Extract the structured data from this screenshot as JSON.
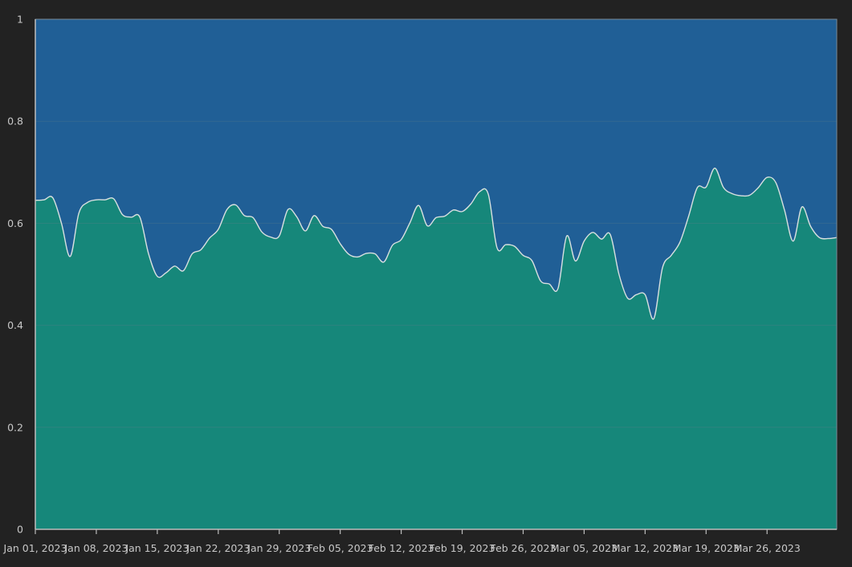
{
  "chart_data": {
    "type": "area",
    "title": "",
    "xlabel": "",
    "ylabel": "",
    "stacked_normalized": true,
    "ylim": [
      0,
      1
    ],
    "yticks": [
      "0",
      "0.2",
      "0.4",
      "0.6",
      "0.8",
      "1"
    ],
    "xlim": [
      "2023-01-01",
      "2023-04-03"
    ],
    "xticks": [
      "Jan 01, 2023",
      "Jan 08, 2023",
      "Jan 15, 2023",
      "Jan 22, 2023",
      "Jan 29, 2023",
      "Feb 05, 2023",
      "Feb 12, 2023",
      "Feb 19, 2023",
      "Feb 26, 2023",
      "Mar 05, 2023",
      "Mar 12, 2023",
      "Mar 19, 2023",
      "Mar 26, 2023"
    ],
    "grid": true,
    "colors": {
      "background": "#222222",
      "lower_series": "#16877a",
      "upper_series": "#205f96",
      "boundary_line": "#d8e0e0",
      "axis": "#bdbdbd",
      "grid": "#5a7a8a"
    },
    "x": [
      "2023-01-01",
      "2023-01-02",
      "2023-01-03",
      "2023-01-04",
      "2023-01-05",
      "2023-01-06",
      "2023-01-07",
      "2023-01-08",
      "2023-01-09",
      "2023-01-10",
      "2023-01-11",
      "2023-01-12",
      "2023-01-13",
      "2023-01-14",
      "2023-01-15",
      "2023-01-16",
      "2023-01-17",
      "2023-01-18",
      "2023-01-19",
      "2023-01-20",
      "2023-01-21",
      "2023-01-22",
      "2023-01-23",
      "2023-01-24",
      "2023-01-25",
      "2023-01-26",
      "2023-01-27",
      "2023-01-28",
      "2023-01-29",
      "2023-01-30",
      "2023-01-31",
      "2023-02-01",
      "2023-02-02",
      "2023-02-03",
      "2023-02-04",
      "2023-02-05",
      "2023-02-06",
      "2023-02-07",
      "2023-02-08",
      "2023-02-09",
      "2023-02-10",
      "2023-02-11",
      "2023-02-12",
      "2023-02-13",
      "2023-02-14",
      "2023-02-15",
      "2023-02-16",
      "2023-02-17",
      "2023-02-18",
      "2023-02-19",
      "2023-02-20",
      "2023-02-21",
      "2023-02-22",
      "2023-02-23",
      "2023-02-24",
      "2023-02-25",
      "2023-02-26",
      "2023-02-27",
      "2023-02-28",
      "2023-03-01",
      "2023-03-02",
      "2023-03-03",
      "2023-03-04",
      "2023-03-05",
      "2023-03-06",
      "2023-03-07",
      "2023-03-08",
      "2023-03-09",
      "2023-03-10",
      "2023-03-11",
      "2023-03-12",
      "2023-03-13",
      "2023-03-14",
      "2023-03-15",
      "2023-03-16",
      "2023-03-17",
      "2023-03-18",
      "2023-03-19",
      "2023-03-20",
      "2023-03-21",
      "2023-03-22",
      "2023-03-23",
      "2023-03-24",
      "2023-03-25",
      "2023-03-26",
      "2023-03-27",
      "2023-03-28",
      "2023-03-29",
      "2023-03-30",
      "2023-03-31",
      "2023-04-01",
      "2023-04-02",
      "2023-04-03"
    ],
    "series": [
      {
        "values": [
          0.645,
          0.646,
          0.65,
          0.6,
          0.535,
          0.62,
          0.641,
          0.646,
          0.646,
          0.648,
          0.617,
          0.612,
          0.612,
          0.54,
          0.496,
          0.503,
          0.516,
          0.507,
          0.54,
          0.548,
          0.571,
          0.588,
          0.627,
          0.636,
          0.615,
          0.611,
          0.583,
          0.573,
          0.575,
          0.627,
          0.613,
          0.585,
          0.615,
          0.594,
          0.588,
          0.56,
          0.539,
          0.534,
          0.541,
          0.54,
          0.524,
          0.557,
          0.568,
          0.601,
          0.635,
          0.595,
          0.611,
          0.614,
          0.626,
          0.623,
          0.638,
          0.662,
          0.657,
          0.552,
          0.558,
          0.555,
          0.537,
          0.527,
          0.487,
          0.481,
          0.472,
          0.575,
          0.526,
          0.565,
          0.582,
          0.569,
          0.578,
          0.5,
          0.453,
          0.46,
          0.46,
          0.413,
          0.513,
          0.537,
          0.563,
          0.614,
          0.67,
          0.671,
          0.708,
          0.67,
          0.658,
          0.654,
          0.655,
          0.67,
          0.69,
          0.68,
          0.626,
          0.565,
          0.632,
          0.594,
          0.572,
          0.57,
          0.572
        ]
      },
      {
        "values": [
          0.355,
          0.354,
          0.35,
          0.4,
          0.465,
          0.38,
          0.359,
          0.354,
          0.354,
          0.352,
          0.383,
          0.388,
          0.388,
          0.46,
          0.504,
          0.497,
          0.484,
          0.493,
          0.46,
          0.452,
          0.429,
          0.412,
          0.373,
          0.364,
          0.385,
          0.389,
          0.417,
          0.427,
          0.425,
          0.373,
          0.387,
          0.415,
          0.385,
          0.406,
          0.412,
          0.44,
          0.461,
          0.466,
          0.459,
          0.46,
          0.476,
          0.443,
          0.432,
          0.399,
          0.365,
          0.405,
          0.389,
          0.386,
          0.374,
          0.377,
          0.362,
          0.338,
          0.343,
          0.448,
          0.442,
          0.445,
          0.463,
          0.473,
          0.513,
          0.519,
          0.528,
          0.425,
          0.474,
          0.435,
          0.418,
          0.431,
          0.422,
          0.5,
          0.547,
          0.54,
          0.54,
          0.587,
          0.487,
          0.463,
          0.437,
          0.386,
          0.33,
          0.329,
          0.292,
          0.33,
          0.342,
          0.346,
          0.345,
          0.33,
          0.31,
          0.32,
          0.374,
          0.435,
          0.368,
          0.406,
          0.428,
          0.43,
          0.428
        ]
      }
    ]
  }
}
